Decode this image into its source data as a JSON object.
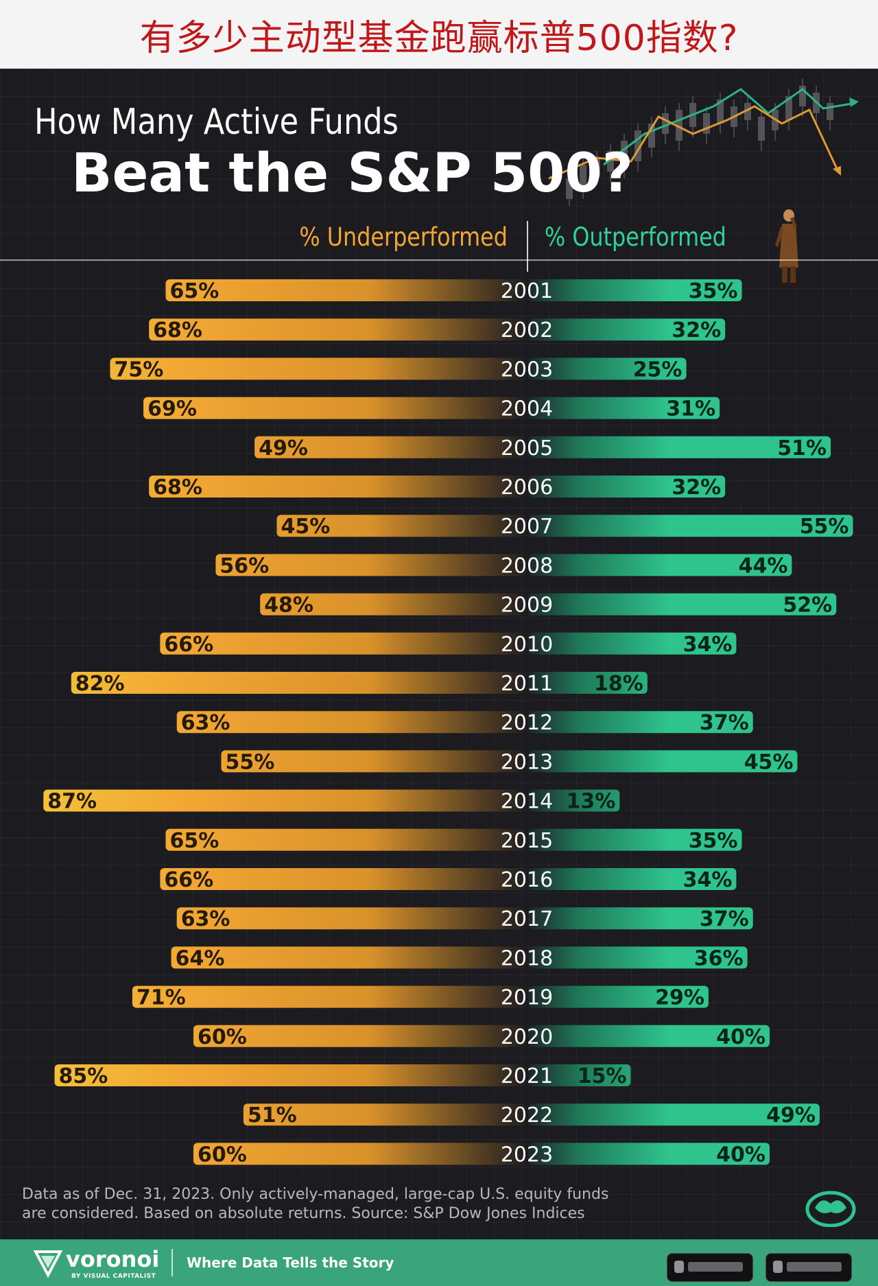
{
  "banner": {
    "title": "有多少主动型基金跑赢标普500指数?"
  },
  "title": {
    "line1": "How Many Active Funds",
    "line2": "Beat the S&P 500?"
  },
  "legend": {
    "underperformed": "% Underperformed",
    "outperformed": "% Outperformed"
  },
  "colors": {
    "underperformed_gold": "#f2a734",
    "underperformed_yellow": "#e8d13a",
    "outperformed": "#2fc48e",
    "label_text": "#241a05",
    "out_label_text": "#06241a"
  },
  "chart_data": {
    "type": "bar",
    "orientation": "horizontal-diverging",
    "categories": [
      "2001",
      "2002",
      "2003",
      "2004",
      "2005",
      "2006",
      "2007",
      "2008",
      "2009",
      "2010",
      "2011",
      "2012",
      "2013",
      "2014",
      "2015",
      "2016",
      "2017",
      "2018",
      "2019",
      "2020",
      "2021",
      "2022",
      "2023"
    ],
    "series": [
      {
        "name": "% Underperformed",
        "values": [
          65,
          68,
          75,
          69,
          49,
          68,
          45,
          56,
          48,
          66,
          82,
          63,
          55,
          87,
          65,
          66,
          63,
          64,
          71,
          60,
          85,
          51,
          60
        ]
      },
      {
        "name": "% Outperformed",
        "values": [
          35,
          32,
          25,
          31,
          51,
          32,
          55,
          44,
          52,
          34,
          18,
          37,
          45,
          13,
          35,
          34,
          37,
          36,
          29,
          40,
          15,
          49,
          40
        ]
      }
    ],
    "value_labels": {
      "under": [
        "65%",
        "68%",
        "75%",
        "69%",
        "49%",
        "68%",
        "45%",
        "56%",
        "48%",
        "66%",
        "82%",
        "63%",
        "55%",
        "87%",
        "65%",
        "66%",
        "63%",
        "64%",
        "71%",
        "60%",
        "85%",
        "51%",
        "60%"
      ],
      "out": [
        "35%",
        "32%",
        "25%",
        "31%",
        "51%",
        "32%",
        "55%",
        "44%",
        "52%",
        "34%",
        "18%",
        "37%",
        "45%",
        "13%",
        "35%",
        "34%",
        "37%",
        "36%",
        "29%",
        "40%",
        "15%",
        "49%",
        "40%"
      ]
    },
    "xlim": [
      0,
      100
    ],
    "title": "How Many Active Funds Beat the S&P 500?",
    "xlabel": "",
    "ylabel": "",
    "grid": true
  },
  "footnote": {
    "line1": "Data as of Dec. 31, 2023. Only actively-managed, large-cap U.S. equity funds",
    "line2": "are considered. Based on absolute returns. Source: S&P Dow Jones Indices"
  },
  "footer": {
    "brand": "voronoi",
    "brand_sub": "BY VISUAL CAPITALIST",
    "tagline": "Where Data Tells the Story",
    "background": "#3aa47c"
  },
  "icons": {
    "decoration": "stock-candlestick-icon",
    "figure": "businessman-icon",
    "vc_badge": "visual-capitalist-icon",
    "logo": "voronoi-logo-icon"
  }
}
